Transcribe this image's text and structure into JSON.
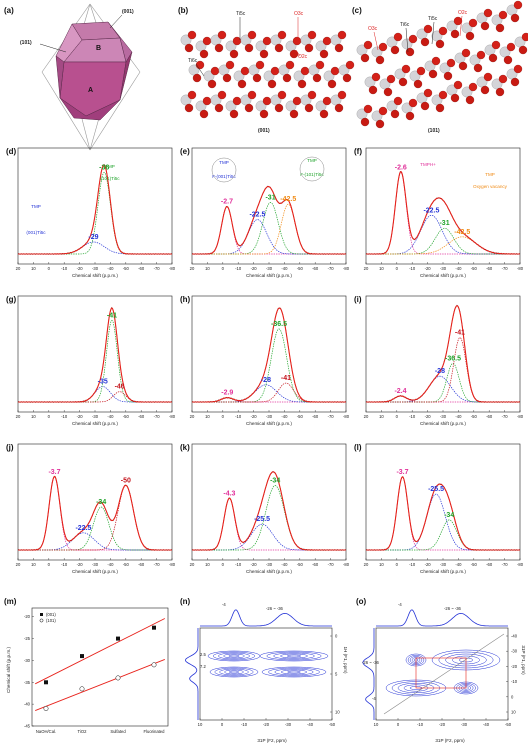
{
  "panel_a": {
    "label": "(a)",
    "facet_top": "(001)",
    "facet_side": "(101)",
    "face_b": "B",
    "face_a": "A"
  },
  "panel_b": {
    "label": "(b)",
    "ti_top": "Ti5c",
    "o_top": "O3c",
    "ti_side": "Ti6c",
    "o_side": "O2c",
    "caption": "(001)"
  },
  "panel_c": {
    "label": "(c)",
    "o_left": "O3c",
    "ti_a": "Ti6c",
    "ti_b": "Ti5c",
    "o_right": "O2c",
    "caption": "(101)"
  },
  "spectra_common": {
    "xlabel": "Chemical shift (p.p.m.)",
    "xticks": [
      "20",
      "10",
      "0",
      "-10",
      "-20",
      "-30",
      "-40",
      "-50",
      "-60",
      "-70",
      "-80"
    ]
  },
  "colors": {
    "total": "#e8231c",
    "experimental": "#111111",
    "blue": "#2433d6",
    "green": "#1fa32a",
    "orange": "#f08a14",
    "magenta": "#e0309a",
    "darkred": "#c4121a"
  },
  "spectra": [
    {
      "id": "d",
      "label": "(d)",
      "peaks": [
        {
          "shift": -29,
          "text": "-29",
          "color": "blue",
          "amp": 0.14,
          "w": 7
        },
        {
          "shift": -36,
          "text": "-36",
          "color": "green",
          "amp": 0.95,
          "w": 4
        }
      ],
      "ann": [
        {
          "text": "TMP",
          "color": "blue"
        },
        {
          "text": "(001)Ti5c",
          "color": "blue"
        },
        {
          "text": "TMP",
          "color": "green"
        },
        {
          "text": "(101)Ti5c",
          "color": "green"
        }
      ]
    },
    {
      "id": "e",
      "label": "(e)",
      "peaks": [
        {
          "shift": -2.7,
          "text": "-2.7",
          "color": "magenta",
          "amp": 0.55,
          "w": 3.5
        },
        {
          "shift": -22.5,
          "text": "-22.5",
          "color": "blue",
          "amp": 0.4,
          "w": 6
        },
        {
          "shift": -31,
          "text": "-31",
          "color": "green",
          "amp": 0.6,
          "w": 5
        },
        {
          "shift": -42.5,
          "text": "-42.5",
          "color": "orange",
          "amp": 0.58,
          "w": 4.5
        }
      ],
      "ann": [
        {
          "text": "TMP",
          "color": "blue"
        },
        {
          "text": "F-(001)Ti5c",
          "color": "blue"
        },
        {
          "text": "TMP",
          "color": "green"
        },
        {
          "text": "F-(101)Ti5c",
          "color": "green"
        }
      ]
    },
    {
      "id": "f",
      "label": "(f)",
      "peaks": [
        {
          "shift": -2.6,
          "text": "-2.6",
          "color": "magenta",
          "amp": 0.95,
          "w": 3.5
        },
        {
          "shift": -22.5,
          "text": "-22.5",
          "color": "blue",
          "amp": 0.45,
          "w": 7
        },
        {
          "shift": -31,
          "text": "-31",
          "color": "green",
          "amp": 0.3,
          "w": 6
        },
        {
          "shift": -42.5,
          "text": "-42.5",
          "color": "orange",
          "amp": 0.2,
          "w": 9
        }
      ],
      "ann": [
        {
          "text": "TMPH+",
          "color": "magenta"
        },
        {
          "text": "TMP",
          "color": "orange"
        },
        {
          "text": "Oxygen vacancy",
          "color": "orange"
        }
      ]
    },
    {
      "id": "g",
      "label": "(g)",
      "peaks": [
        {
          "shift": -35,
          "text": "-35",
          "color": "blue",
          "amp": 0.18,
          "w": 5
        },
        {
          "shift": -41,
          "text": "-41",
          "color": "green",
          "amp": 0.95,
          "w": 3.5
        },
        {
          "shift": -46,
          "text": "-46",
          "color": "darkred",
          "amp": 0.12,
          "w": 4
        }
      ],
      "ann": []
    },
    {
      "id": "h",
      "label": "(h)",
      "peaks": [
        {
          "shift": -2.9,
          "text": "-2.9",
          "color": "magenta",
          "amp": 0.05,
          "w": 4
        },
        {
          "shift": -28,
          "text": "-28",
          "color": "blue",
          "amp": 0.2,
          "w": 7
        },
        {
          "shift": -36.5,
          "text": "-36.5",
          "color": "green",
          "amp": 0.85,
          "w": 5
        },
        {
          "shift": -41,
          "text": "-41",
          "color": "darkred",
          "amp": 0.22,
          "w": 5
        }
      ],
      "ann": []
    },
    {
      "id": "i",
      "label": "(i)",
      "peaks": [
        {
          "shift": -2.4,
          "text": "-2.4",
          "color": "magenta",
          "amp": 0.07,
          "w": 4
        },
        {
          "shift": -28,
          "text": "-28",
          "color": "blue",
          "amp": 0.3,
          "w": 7
        },
        {
          "shift": -36.5,
          "text": "-36.5",
          "color": "green",
          "amp": 0.45,
          "w": 4
        },
        {
          "shift": -41,
          "text": "-41",
          "color": "darkred",
          "amp": 0.75,
          "w": 4
        }
      ],
      "ann": []
    },
    {
      "id": "j",
      "label": "(j)",
      "peaks": [
        {
          "shift": -3.7,
          "text": "-3.7",
          "color": "magenta",
          "amp": 0.85,
          "w": 3.5
        },
        {
          "shift": -22.5,
          "text": "-22.5",
          "color": "blue",
          "amp": 0.2,
          "w": 7
        },
        {
          "shift": -34,
          "text": "-34",
          "color": "green",
          "amp": 0.5,
          "w": 5
        },
        {
          "shift": -50,
          "text": "-50",
          "color": "darkred",
          "amp": 0.75,
          "w": 5
        }
      ],
      "ann": []
    },
    {
      "id": "k",
      "label": "(k)",
      "peaks": [
        {
          "shift": -4.3,
          "text": "-4.3",
          "color": "magenta",
          "amp": 0.6,
          "w": 3.5
        },
        {
          "shift": -25.5,
          "text": "-25.5",
          "color": "blue",
          "amp": 0.3,
          "w": 7
        },
        {
          "shift": -34,
          "text": "-34",
          "color": "green",
          "amp": 0.75,
          "w": 6
        }
      ],
      "ann": []
    },
    {
      "id": "l",
      "label": "(l)",
      "peaks": [
        {
          "shift": -3.7,
          "text": "-3.7",
          "color": "magenta",
          "amp": 0.85,
          "w": 3.5
        },
        {
          "shift": -25.5,
          "text": "-25.5",
          "color": "blue",
          "amp": 0.65,
          "w": 6
        },
        {
          "shift": -34,
          "text": "-34",
          "color": "green",
          "amp": 0.35,
          "w": 5
        }
      ],
      "ann": []
    }
  ],
  "panel_m": {
    "label": "(m)",
    "ylabel": "Chemical shift (p.p.m.)",
    "categories": [
      "NaOH/Cal.",
      "TiO2",
      "Sulfated",
      "Fluorinated"
    ],
    "yticks": [
      "-20",
      "-25",
      "-30",
      "-35",
      "-40",
      "-45"
    ],
    "legend": [
      "(001)",
      "(101)"
    ],
    "series_001": [
      -35,
      -29,
      -25,
      -22.5
    ],
    "series_101": [
      -41,
      -36.5,
      -34,
      -31
    ]
  },
  "panel_n": {
    "label": "(n)",
    "top_left": "-4",
    "top_right": "-26 ~ -36",
    "left_a": "2.5",
    "left_b": "7.2",
    "xlabel": "31P (F2, ppm)",
    "ylabel": "1H (F1, ppm)",
    "xticks": [
      "10",
      "0",
      "-10",
      "-20",
      "-30",
      "-40",
      "-50"
    ],
    "yticks": [
      "0",
      "5",
      "10"
    ]
  },
  "panel_o": {
    "label": "(o)",
    "top_left": "-4",
    "top_right": "-26 ~ -36",
    "left_a": "-26 ~ -36",
    "left_b": "-4",
    "xlabel": "31P (F2, ppm)",
    "ylabel": "31P (F1, ppm)",
    "xticks": [
      "10",
      "0",
      "-10",
      "-20",
      "-30",
      "-40",
      "-50"
    ],
    "yticks": [
      "-40",
      "-30",
      "-20",
      "-10",
      "0",
      "10"
    ]
  }
}
